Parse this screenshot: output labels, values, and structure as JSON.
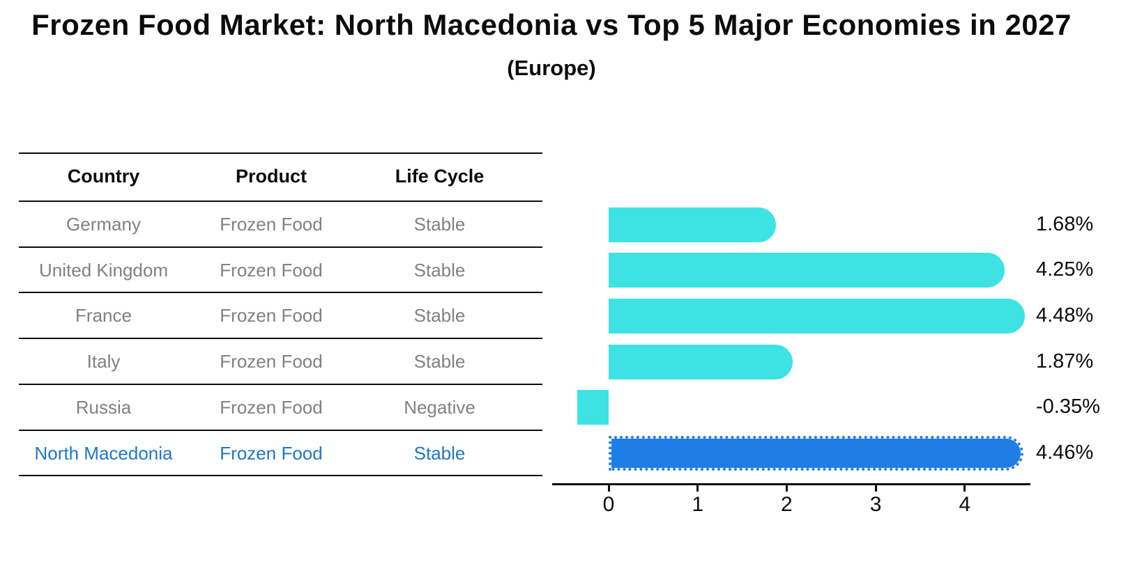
{
  "title": "Frozen Food Market: North Macedonia vs Top 5 Major Economies in 2027",
  "subtitle": "(Europe)",
  "table": {
    "headers": [
      "Country",
      "Product",
      "Life Cycle"
    ],
    "rows": [
      {
        "country": "Germany",
        "product": "Frozen Food",
        "life_cycle": "Stable",
        "highlighted": false
      },
      {
        "country": "United Kingdom",
        "product": "Frozen Food",
        "life_cycle": "Stable",
        "highlighted": false
      },
      {
        "country": "France",
        "product": "Frozen Food",
        "life_cycle": "Stable",
        "highlighted": false
      },
      {
        "country": "Italy",
        "product": "Frozen Food",
        "life_cycle": "Stable",
        "highlighted": false
      },
      {
        "country": "Russia",
        "product": "Frozen Food",
        "life_cycle": "Negative",
        "highlighted": false
      },
      {
        "country": "North Macedonia",
        "product": "Frozen Food",
        "life_cycle": "Stable",
        "highlighted": true
      }
    ]
  },
  "chart_data": {
    "type": "bar",
    "orientation": "horizontal",
    "title": "Frozen Food Market: North Macedonia vs Top 5 Major Economies in 2027",
    "subtitle": "(Europe)",
    "categories": [
      "Germany",
      "United Kingdom",
      "France",
      "Italy",
      "Russia",
      "North Macedonia"
    ],
    "values": [
      1.68,
      4.25,
      4.48,
      1.87,
      -0.35,
      4.46
    ],
    "value_labels": [
      "1.68%",
      "4.25%",
      "4.48%",
      "1.87%",
      "-0.35%",
      "4.46%"
    ],
    "xticks": [
      0,
      1,
      2,
      3,
      4
    ],
    "xlim": [
      -0.63,
      4.73
    ],
    "grid": false,
    "legend": false,
    "bar_color": "#3de3e3",
    "highlight_color": "#1e7de6",
    "highlight_index": 5,
    "highlight_edge_style": "dotted",
    "highlight_text_color": "#1f77c9"
  }
}
